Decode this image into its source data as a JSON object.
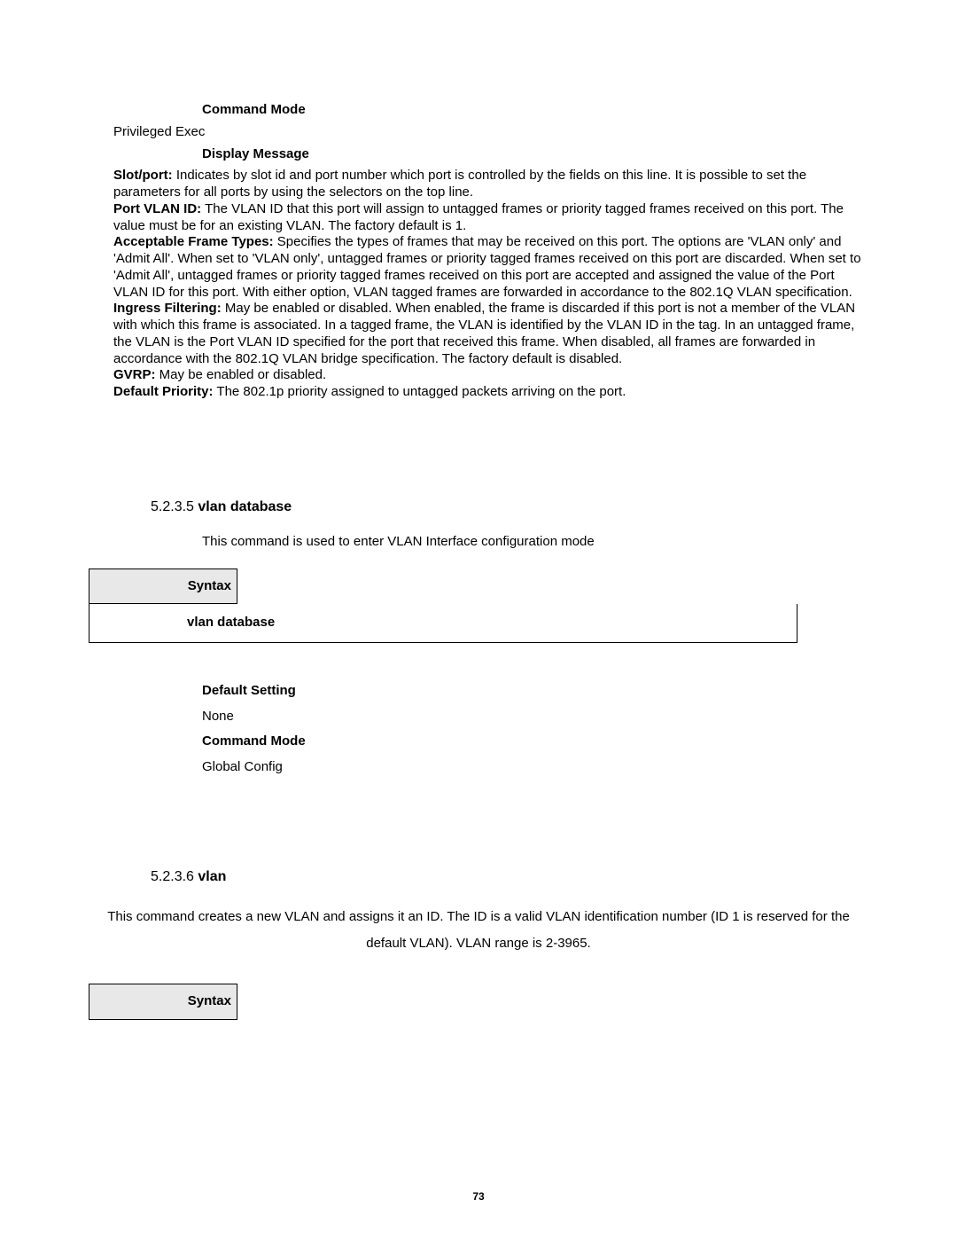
{
  "headings": {
    "command_mode_1": "Command Mode",
    "display_message": "Display Message",
    "default_setting": "Default Setting",
    "command_mode_2": "Command Mode",
    "syntax": "Syntax"
  },
  "values": {
    "privileged_exec": "Privileged Exec",
    "none": "None",
    "global_config": "Global Config",
    "vlan_database_cmd": "vlan database"
  },
  "terms": {
    "slot_port_label": "Slot/port:",
    "slot_port_text": " Indicates by slot id and port number which port is controlled by the fields on this line. It is possible to set the parameters for all ports by using the selectors on the top line.",
    "port_vlan_id_label": "Port VLAN ID:",
    "port_vlan_id_text": " The VLAN ID that this port will assign to untagged frames or priority tagged frames received on this port. The value must be for an existing VLAN. The factory default is 1.",
    "acceptable_label": "Acceptable Frame Types:",
    "acceptable_text": " Specifies the types of frames that may be received on this port. The options are 'VLAN only' and 'Admit All'. When set to 'VLAN only', untagged frames or priority tagged frames received on this port are discarded. When set to 'Admit All', untagged frames or priority tagged frames received on this port are accepted and assigned the value of the Port VLAN ID for this port. With either option, VLAN tagged frames are forwarded in accordance to the 802.1Q VLAN specification.",
    "ingress_label": "Ingress Filtering:",
    "ingress_text": " May be enabled or disabled. When enabled, the frame is discarded if this port is not a member of the VLAN with which this frame is associated. In a tagged frame, the VLAN is identified by the VLAN ID in the tag. In an untagged frame, the VLAN is the Port VLAN ID specified for the port that received this frame. When disabled, all frames are forwarded in accordance with the 802.1Q VLAN bridge specification. The factory default is disabled.",
    "gvrp_label": "GVRP:",
    "gvrp_text": " May be enabled or disabled.",
    "default_priority_label": "Default Priority:",
    "default_priority_text": " The 802.1p priority assigned to untagged packets arriving on the port."
  },
  "sections": {
    "s5235_num": "5.2.3.5 ",
    "s5235_title": "vlan database",
    "s5235_desc": "This command is used to enter VLAN Interface configuration mode",
    "s5236_num": "5.2.3.6 ",
    "s5236_title": "vlan",
    "s5236_desc": "This command creates a new VLAN and assigns it an ID. The ID is a valid VLAN identification number (ID 1 is reserved for the default VLAN). VLAN range is 2-3965."
  },
  "page_number": "73"
}
